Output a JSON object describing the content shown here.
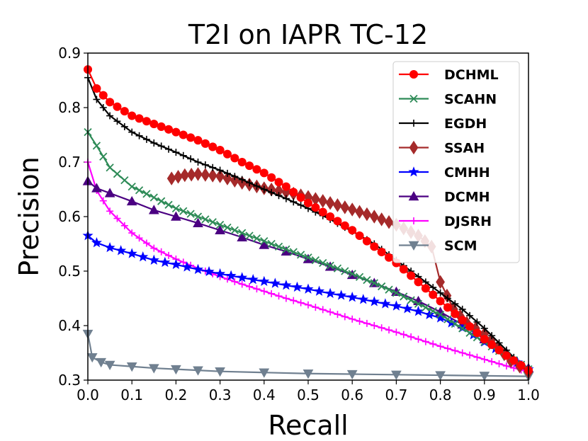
{
  "chart_data": {
    "type": "line",
    "title": "T2I on IAPR TC-12",
    "xlabel": "Recall",
    "ylabel": "Precision",
    "xlim": [
      0.0,
      1.0
    ],
    "ylim": [
      0.3,
      0.9
    ],
    "xticks": [
      "0.0",
      "0.1",
      "0.2",
      "0.3",
      "0.4",
      "0.5",
      "0.6",
      "0.7",
      "0.8",
      "0.9",
      "1.0"
    ],
    "yticks": [
      "0.3",
      "0.4",
      "0.5",
      "0.6",
      "0.7",
      "0.8",
      "0.9"
    ],
    "legend_position": "top-right",
    "series": [
      {
        "name": "DCHML",
        "color": "#ff0000",
        "marker": "circle",
        "x": [
          0.0,
          0.02,
          0.05,
          0.1,
          0.15,
          0.2,
          0.25,
          0.3,
          0.35,
          0.4,
          0.45,
          0.5,
          0.55,
          0.6,
          0.65,
          0.7,
          0.75,
          0.8,
          0.85,
          0.9,
          0.95,
          1.0
        ],
        "y": [
          0.87,
          0.835,
          0.81,
          0.785,
          0.77,
          0.755,
          0.74,
          0.722,
          0.7,
          0.68,
          0.655,
          0.625,
          0.6,
          0.575,
          0.545,
          0.515,
          0.48,
          0.445,
          0.41,
          0.375,
          0.345,
          0.318
        ]
      },
      {
        "name": "SCAHN",
        "color": "#2e8b57",
        "marker": "x",
        "x": [
          0.0,
          0.02,
          0.05,
          0.1,
          0.15,
          0.2,
          0.25,
          0.3,
          0.35,
          0.4,
          0.45,
          0.5,
          0.55,
          0.6,
          0.65,
          0.7,
          0.75,
          0.8,
          0.85,
          0.9,
          0.95,
          1.0
        ],
        "y": [
          0.755,
          0.73,
          0.69,
          0.655,
          0.635,
          0.615,
          0.6,
          0.585,
          0.57,
          0.555,
          0.54,
          0.525,
          0.51,
          0.495,
          0.478,
          0.46,
          0.44,
          0.42,
          0.395,
          0.37,
          0.345,
          0.32
        ]
      },
      {
        "name": "EGDH",
        "color": "#000000",
        "marker": "plus",
        "x": [
          0.0,
          0.02,
          0.05,
          0.1,
          0.15,
          0.2,
          0.25,
          0.3,
          0.35,
          0.4,
          0.45,
          0.5,
          0.55,
          0.6,
          0.65,
          0.7,
          0.75,
          0.8,
          0.85,
          0.9,
          0.95,
          1.0
        ],
        "y": [
          0.855,
          0.815,
          0.785,
          0.755,
          0.735,
          0.718,
          0.7,
          0.685,
          0.668,
          0.65,
          0.633,
          0.615,
          0.595,
          0.573,
          0.55,
          0.52,
          0.49,
          0.46,
          0.43,
          0.395,
          0.355,
          0.315
        ]
      },
      {
        "name": "SSAH",
        "color": "#a52a2a",
        "marker": "diamond",
        "x": [
          0.19,
          0.22,
          0.25,
          0.3,
          0.35,
          0.4,
          0.45,
          0.5,
          0.55,
          0.6,
          0.65,
          0.7,
          0.75,
          0.78,
          0.8,
          0.83,
          0.86,
          0.9,
          0.93,
          0.96,
          1.0
        ],
        "y": [
          0.67,
          0.676,
          0.678,
          0.674,
          0.662,
          0.652,
          0.645,
          0.636,
          0.625,
          0.613,
          0.6,
          0.585,
          0.565,
          0.545,
          0.48,
          0.43,
          0.405,
          0.385,
          0.36,
          0.335,
          0.315
        ]
      },
      {
        "name": "CMHH",
        "color": "#0000ff",
        "marker": "star",
        "x": [
          0.0,
          0.02,
          0.05,
          0.1,
          0.15,
          0.2,
          0.25,
          0.3,
          0.35,
          0.4,
          0.45,
          0.5,
          0.55,
          0.6,
          0.65,
          0.7,
          0.75,
          0.8,
          0.85,
          0.9,
          0.95,
          1.0
        ],
        "y": [
          0.565,
          0.552,
          0.543,
          0.532,
          0.52,
          0.512,
          0.503,
          0.495,
          0.488,
          0.481,
          0.474,
          0.467,
          0.459,
          0.452,
          0.444,
          0.436,
          0.426,
          0.414,
          0.396,
          0.37,
          0.345,
          0.32
        ]
      },
      {
        "name": "DCMH",
        "color": "#4b0082",
        "marker": "triangle-up",
        "x": [
          0.0,
          0.02,
          0.05,
          0.1,
          0.15,
          0.2,
          0.25,
          0.3,
          0.35,
          0.4,
          0.45,
          0.5,
          0.55,
          0.6,
          0.65,
          0.7,
          0.75,
          0.8,
          0.85,
          0.9,
          0.95,
          1.0
        ],
        "y": [
          0.665,
          0.652,
          0.643,
          0.628,
          0.612,
          0.6,
          0.588,
          0.575,
          0.562,
          0.548,
          0.536,
          0.522,
          0.508,
          0.493,
          0.478,
          0.462,
          0.445,
          0.425,
          0.402,
          0.375,
          0.35,
          0.322
        ]
      },
      {
        "name": "DJSRH",
        "color": "#ff00ff",
        "marker": "plus",
        "x": [
          0.0,
          0.02,
          0.05,
          0.1,
          0.15,
          0.2,
          0.25,
          0.3,
          0.35,
          0.4,
          0.45,
          0.5,
          0.55,
          0.6,
          0.65,
          0.7,
          0.75,
          0.8,
          0.85,
          0.9,
          0.95,
          1.0
        ],
        "y": [
          0.7,
          0.648,
          0.61,
          0.57,
          0.542,
          0.522,
          0.505,
          0.49,
          0.476,
          0.463,
          0.45,
          0.438,
          0.425,
          0.412,
          0.4,
          0.388,
          0.375,
          0.362,
          0.35,
          0.338,
          0.326,
          0.315
        ]
      },
      {
        "name": "SCM",
        "color": "#708090",
        "marker": "triangle-down",
        "x": [
          0.0,
          0.01,
          0.03,
          0.05,
          0.1,
          0.15,
          0.2,
          0.25,
          0.3,
          0.4,
          0.5,
          0.6,
          0.7,
          0.8,
          0.9,
          1.0
        ],
        "y": [
          0.385,
          0.342,
          0.333,
          0.328,
          0.325,
          0.322,
          0.32,
          0.318,
          0.316,
          0.314,
          0.312,
          0.311,
          0.31,
          0.309,
          0.308,
          0.307
        ]
      }
    ]
  }
}
